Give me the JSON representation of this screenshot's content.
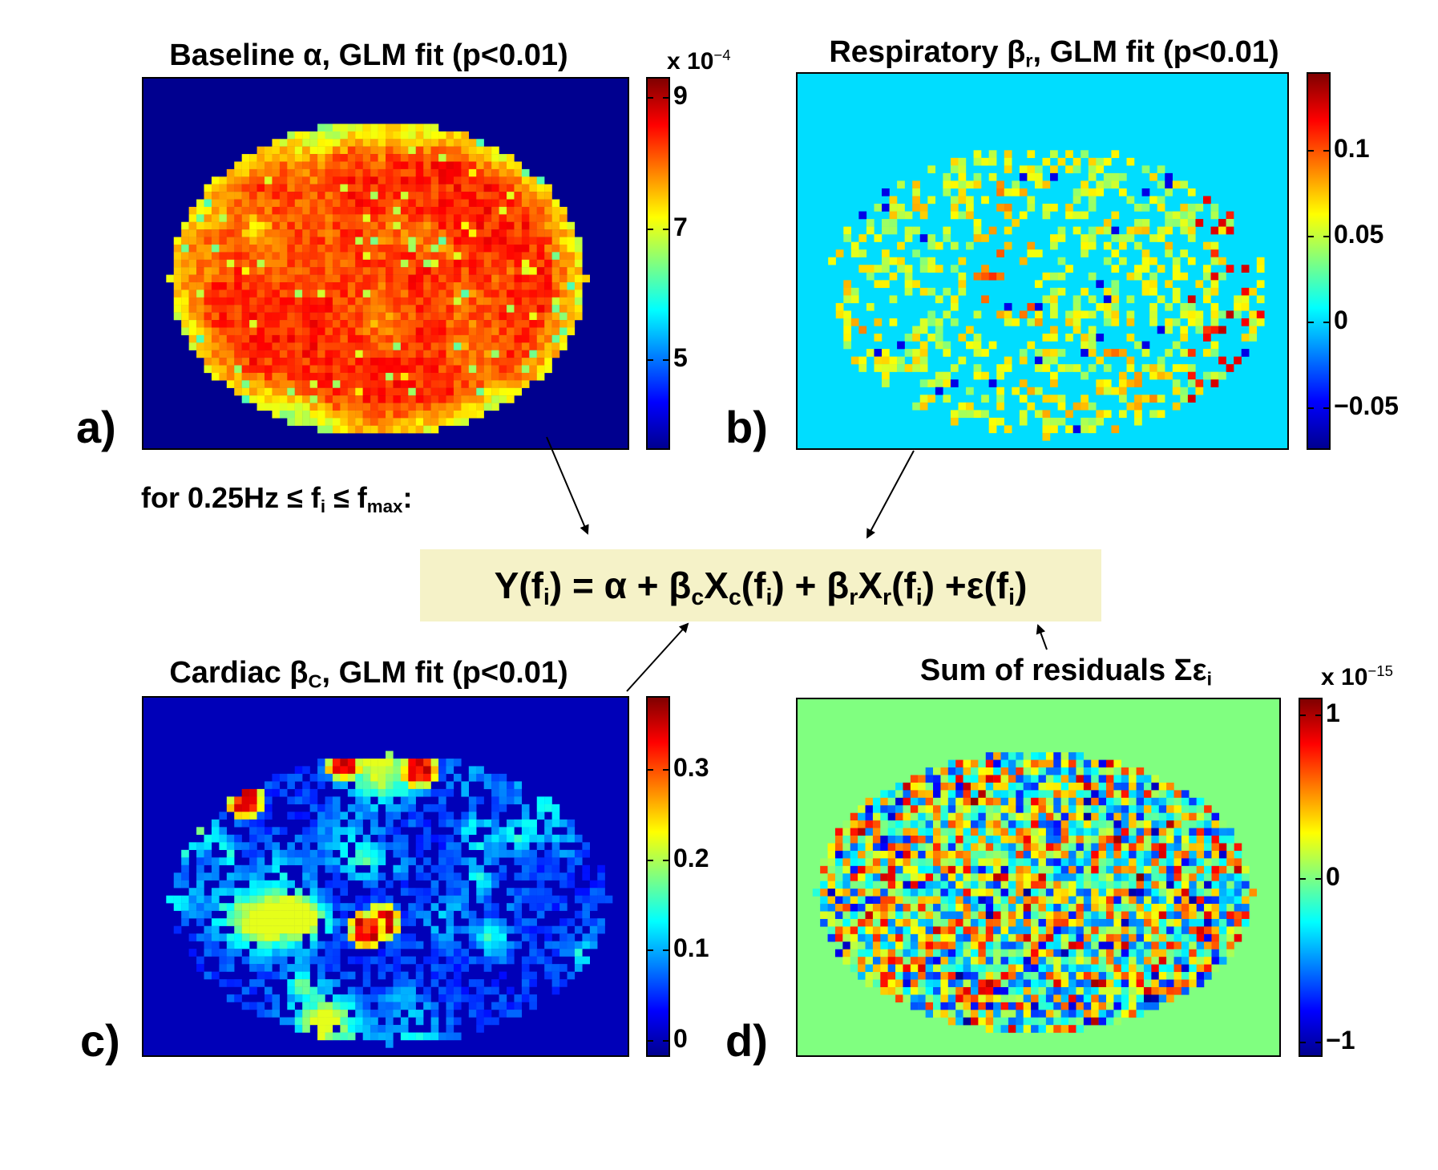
{
  "panel_a": {
    "title_prefix": "Baseline α, GLM fit (p<0.01)",
    "label": "a)",
    "exponent_text": "x 10",
    "exponent_power": "−4",
    "colorbar_ticks": [
      "9",
      "7",
      "5"
    ],
    "tick_values": [
      9,
      7,
      5
    ],
    "colorbar_range": [
      3.6,
      9.3
    ],
    "background_color": "#00008f"
  },
  "panel_b": {
    "title_part1": "Respiratory β",
    "title_sub": "r",
    "title_part2": ", GLM fit (p<0.01)",
    "label": "b)",
    "colorbar_ticks": [
      "0.1",
      "0.05",
      "0",
      "−0.05"
    ],
    "tick_values": [
      0.1,
      0.05,
      0,
      -0.05
    ],
    "colorbar_range": [
      -0.075,
      0.145
    ],
    "background_color": "#00ddff"
  },
  "panel_c": {
    "title_part1": "Cardiac β",
    "title_sub": "C",
    "title_part2": ", GLM fit (p<0.01)",
    "label": "c)",
    "colorbar_ticks": [
      "0.3",
      "0.2",
      "0.1",
      "0"
    ],
    "tick_values": [
      0.3,
      0.2,
      0.1,
      0
    ],
    "colorbar_range": [
      -0.02,
      0.38
    ],
    "background_color": "#0000b8"
  },
  "panel_d": {
    "title_part1": "Sum of residuals Σε",
    "title_sub": "i",
    "label": "d)",
    "exponent_text": "x 10",
    "exponent_power": "−15",
    "colorbar_ticks": [
      "1",
      "0",
      "−1"
    ],
    "tick_values": [
      1,
      0,
      -1
    ],
    "colorbar_range": [
      -1.1,
      1.1
    ],
    "background_color": "#80ff80"
  },
  "frequency_condition": {
    "prefix": "for 0.25Hz ≤ f",
    "sub1": "i",
    "middle": " ≤ f",
    "sub2": "max",
    "suffix": ":"
  },
  "equation": {
    "p1": "Y(f",
    "s1": "i",
    "p2": ")  =  α + β",
    "s2": "c",
    "p3": "X",
    "s3": "c",
    "p4": "(f",
    "s4": "i",
    "p5": ") + β",
    "s5": "r",
    "p6": "X",
    "s6": "r",
    "p7": "(f",
    "s7": "i",
    "p8": ") +ε(f",
    "s8": "i",
    "p9": ")",
    "box_color": "#f5f2c8"
  }
}
